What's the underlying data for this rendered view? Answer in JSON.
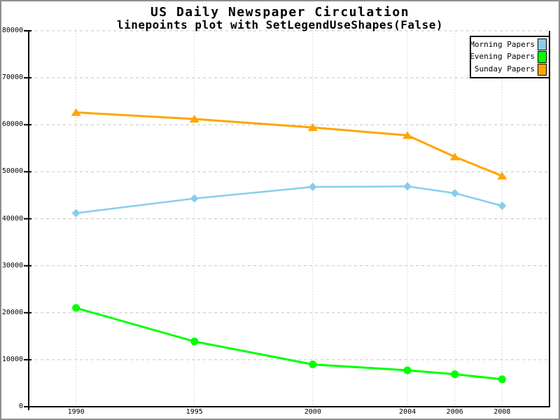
{
  "title": "US Daily Newspaper Circulation",
  "subtitle": "linepoints plot with SetLegendUseShapes(False)",
  "colors": {
    "background": "#ffffff",
    "frame_border": "#8e8e8e",
    "axis": "#000000",
    "grid": "#c4c4c4",
    "text": "#000000",
    "legend_border": "#000000"
  },
  "chart_data": {
    "type": "line",
    "variant": "linepoints",
    "title": "US Daily Newspaper Circulation",
    "subtitle": "linepoints plot with SetLegendUseShapes(False)",
    "xlabel": "",
    "ylabel": "",
    "x": [
      1990,
      1995,
      2000,
      2004,
      2006,
      2008
    ],
    "x_tick_labels": [
      "1990",
      "1995",
      "2000",
      "2004",
      "2006",
      "2008"
    ],
    "xlim": [
      1988,
      2010
    ],
    "ylim": [
      0,
      80000
    ],
    "yticks": [
      0,
      10000,
      20000,
      30000,
      40000,
      50000,
      60000,
      70000,
      80000
    ],
    "y_tick_labels": [
      "0",
      "10000",
      "20000",
      "30000",
      "40000",
      "50000",
      "60000",
      "70000",
      "80000"
    ],
    "grid": true,
    "legend_position": "top-right",
    "series": [
      {
        "name": "Morning Papers",
        "color": "#87CEEB",
        "marker": "diamond",
        "values": [
          41198,
          44310,
          46772,
          46887,
          45441,
          42757
        ]
      },
      {
        "name": "Evening Papers",
        "color": "#00FF00",
        "marker": "dot",
        "values": [
          21017,
          13883,
          9000,
          7738,
          6906,
          5840
        ]
      },
      {
        "name": "Sunday Papers",
        "color": "#FFA500",
        "marker": "delta",
        "values": [
          62635,
          61229,
          59421,
          57754,
          53179,
          49115
        ]
      }
    ]
  }
}
